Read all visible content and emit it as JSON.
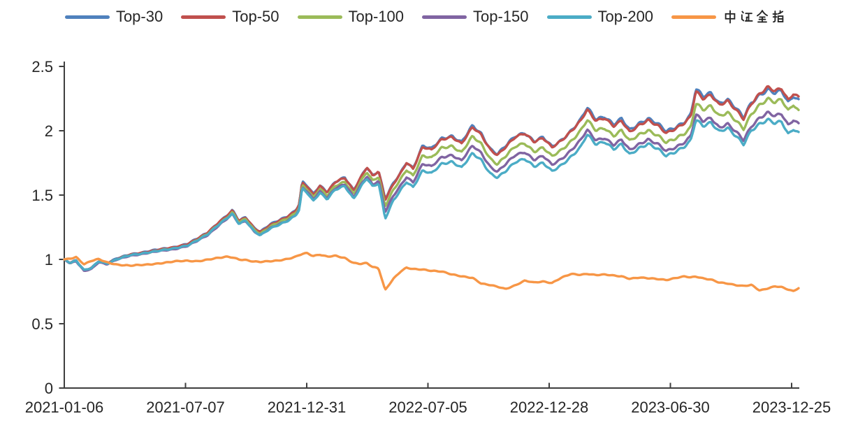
{
  "legend": {
    "items": [
      {
        "label": "Top-30",
        "color": "#4F81BD"
      },
      {
        "label": "Top-50",
        "color": "#C0504D"
      },
      {
        "label": "Top-100",
        "color": "#9BBB59"
      },
      {
        "label": "Top-150",
        "color": "#8064A2"
      },
      {
        "label": "Top-200",
        "color": "#4BACC6"
      },
      {
        "label": "中证全指",
        "color": "#F79646"
      }
    ]
  },
  "chart_data": {
    "type": "line",
    "title": "",
    "xlabel": "",
    "ylabel": "",
    "grid": false,
    "legend_position": "top",
    "ylim": [
      0,
      2.5
    ],
    "y_ticks": [
      0,
      0.5,
      1,
      1.5,
      2,
      2.5
    ],
    "y_tick_labels": [
      "0",
      "0.5",
      "1",
      "1.5",
      "2",
      "2.5"
    ],
    "x_tick_labels": [
      "2021-01-06",
      "2021-07-07",
      "2021-12-31",
      "2022-07-05",
      "2022-12-28",
      "2023-06-30",
      "2023-12-25"
    ],
    "t": [
      0.0,
      0.008,
      0.016,
      0.027,
      0.037,
      0.047,
      0.058,
      0.072,
      0.09,
      0.11,
      0.13,
      0.15,
      0.168,
      0.181,
      0.195,
      0.21,
      0.222,
      0.229,
      0.238,
      0.247,
      0.258,
      0.267,
      0.28,
      0.292,
      0.304,
      0.315,
      0.32,
      0.324,
      0.331,
      0.339,
      0.348,
      0.358,
      0.369,
      0.382,
      0.394,
      0.403,
      0.412,
      0.42,
      0.428,
      0.437,
      0.448,
      0.458,
      0.466,
      0.475,
      0.488,
      0.5,
      0.514,
      0.528,
      0.541,
      0.556,
      0.568,
      0.58,
      0.59,
      0.601,
      0.614,
      0.627,
      0.64,
      0.652,
      0.664,
      0.676,
      0.69,
      0.703,
      0.712,
      0.724,
      0.736,
      0.748,
      0.759,
      0.77,
      0.783,
      0.795,
      0.808,
      0.82,
      0.832,
      0.845,
      0.853,
      0.86,
      0.87,
      0.881,
      0.892,
      0.903,
      0.914,
      0.925,
      0.936,
      0.947,
      0.958,
      0.968,
      0.977,
      0.986,
      0.993,
      1.0
    ],
    "series": [
      {
        "name": "Top-30",
        "color": "#4F81BD",
        "values": [
          1.0,
          0.975,
          0.992,
          0.916,
          0.936,
          0.99,
          0.97,
          1.006,
          1.04,
          1.056,
          1.076,
          1.096,
          1.12,
          1.16,
          1.21,
          1.29,
          1.345,
          1.382,
          1.302,
          1.332,
          1.252,
          1.218,
          1.27,
          1.302,
          1.337,
          1.383,
          1.432,
          1.602,
          1.568,
          1.502,
          1.57,
          1.524,
          1.604,
          1.633,
          1.532,
          1.628,
          1.722,
          1.655,
          1.69,
          1.47,
          1.59,
          1.676,
          1.762,
          1.716,
          1.885,
          1.86,
          1.945,
          1.964,
          1.908,
          2.035,
          1.975,
          1.86,
          1.815,
          1.875,
          1.952,
          1.985,
          1.918,
          1.946,
          1.874,
          1.926,
          2.005,
          2.085,
          2.18,
          2.095,
          2.12,
          2.055,
          2.092,
          2.002,
          2.06,
          2.098,
          2.05,
          1.986,
          2.022,
          2.072,
          2.12,
          2.32,
          2.258,
          2.29,
          2.215,
          2.25,
          2.18,
          2.102,
          2.225,
          2.288,
          2.33,
          2.295,
          2.31,
          2.218,
          2.278,
          2.245
        ]
      },
      {
        "name": "Top-50",
        "color": "#C0504D",
        "values": [
          1.0,
          0.974,
          0.991,
          0.915,
          0.935,
          0.989,
          0.969,
          1.004,
          1.038,
          1.054,
          1.074,
          1.093,
          1.117,
          1.157,
          1.207,
          1.287,
          1.342,
          1.379,
          1.299,
          1.329,
          1.249,
          1.215,
          1.267,
          1.299,
          1.334,
          1.38,
          1.428,
          1.598,
          1.564,
          1.499,
          1.567,
          1.521,
          1.601,
          1.63,
          1.53,
          1.625,
          1.716,
          1.65,
          1.685,
          1.462,
          1.583,
          1.67,
          1.756,
          1.71,
          1.878,
          1.853,
          1.938,
          1.957,
          1.901,
          2.028,
          1.968,
          1.853,
          1.808,
          1.868,
          1.945,
          1.978,
          1.911,
          1.939,
          1.867,
          1.919,
          1.998,
          2.077,
          2.165,
          2.082,
          2.107,
          2.043,
          2.08,
          1.99,
          2.048,
          2.086,
          2.039,
          1.975,
          2.011,
          2.061,
          2.106,
          2.3,
          2.24,
          2.272,
          2.198,
          2.234,
          2.165,
          2.09,
          2.215,
          2.295,
          2.348,
          2.315,
          2.33,
          2.238,
          2.298,
          2.268
        ]
      },
      {
        "name": "Top-100",
        "color": "#9BBB59",
        "values": [
          1.0,
          0.972,
          0.988,
          0.912,
          0.931,
          0.985,
          0.965,
          1.0,
          1.033,
          1.048,
          1.067,
          1.086,
          1.109,
          1.148,
          1.197,
          1.275,
          1.329,
          1.364,
          1.286,
          1.315,
          1.236,
          1.202,
          1.253,
          1.284,
          1.318,
          1.362,
          1.409,
          1.576,
          1.542,
          1.477,
          1.543,
          1.497,
          1.575,
          1.602,
          1.502,
          1.595,
          1.682,
          1.615,
          1.648,
          1.415,
          1.536,
          1.622,
          1.7,
          1.656,
          1.81,
          1.786,
          1.868,
          1.886,
          1.832,
          1.952,
          1.895,
          1.785,
          1.74,
          1.798,
          1.872,
          1.904,
          1.84,
          1.867,
          1.797,
          1.847,
          1.923,
          2.0,
          2.082,
          2.003,
          2.028,
          1.966,
          2.002,
          1.916,
          1.972,
          2.008,
          1.962,
          1.9,
          1.935,
          1.983,
          2.026,
          2.212,
          2.155,
          2.186,
          2.115,
          2.15,
          2.083,
          2.01,
          2.13,
          2.208,
          2.258,
          2.225,
          2.24,
          2.15,
          2.208,
          2.158
        ]
      },
      {
        "name": "Top-150",
        "color": "#8064A2",
        "values": [
          1.0,
          0.97,
          0.986,
          0.91,
          0.928,
          0.982,
          0.962,
          0.997,
          1.029,
          1.044,
          1.062,
          1.08,
          1.103,
          1.141,
          1.189,
          1.266,
          1.319,
          1.352,
          1.275,
          1.304,
          1.225,
          1.191,
          1.241,
          1.271,
          1.304,
          1.347,
          1.393,
          1.558,
          1.524,
          1.459,
          1.524,
          1.477,
          1.553,
          1.578,
          1.478,
          1.568,
          1.65,
          1.583,
          1.614,
          1.368,
          1.492,
          1.576,
          1.648,
          1.606,
          1.745,
          1.722,
          1.8,
          1.817,
          1.766,
          1.88,
          1.826,
          1.72,
          1.677,
          1.732,
          1.804,
          1.835,
          1.773,
          1.799,
          1.732,
          1.78,
          1.853,
          1.927,
          2.007,
          1.932,
          1.955,
          1.896,
          1.93,
          1.848,
          1.901,
          1.936,
          1.892,
          1.832,
          1.866,
          1.912,
          1.954,
          2.118,
          2.064,
          2.094,
          2.026,
          2.059,
          1.995,
          1.925,
          2.04,
          2.112,
          2.152,
          2.118,
          2.13,
          2.042,
          2.095,
          2.062
        ]
      },
      {
        "name": "Top-200",
        "color": "#4BACC6",
        "values": [
          1.0,
          0.974,
          0.99,
          0.917,
          0.934,
          0.988,
          0.967,
          1.002,
          1.034,
          1.049,
          1.067,
          1.085,
          1.107,
          1.145,
          1.193,
          1.27,
          1.322,
          1.354,
          1.276,
          1.305,
          1.224,
          1.189,
          1.239,
          1.269,
          1.301,
          1.343,
          1.389,
          1.552,
          1.517,
          1.451,
          1.516,
          1.468,
          1.543,
          1.567,
          1.466,
          1.554,
          1.632,
          1.565,
          1.594,
          1.315,
          1.455,
          1.538,
          1.605,
          1.564,
          1.692,
          1.67,
          1.746,
          1.763,
          1.714,
          1.824,
          1.772,
          1.668,
          1.635,
          1.682,
          1.752,
          1.781,
          1.721,
          1.747,
          1.682,
          1.728,
          1.799,
          1.871,
          1.972,
          1.898,
          1.92,
          1.862,
          1.896,
          1.815,
          1.868,
          1.902,
          1.859,
          1.8,
          1.833,
          1.879,
          1.92,
          2.082,
          2.03,
          2.058,
          1.992,
          2.024,
          1.961,
          1.892,
          2.005,
          2.058,
          2.092,
          2.062,
          2.072,
          1.972,
          2.02,
          1.988
        ]
      },
      {
        "name": "中证全指",
        "color": "#F79646",
        "values": [
          1.0,
          1.004,
          1.018,
          0.962,
          0.988,
          1.0,
          0.975,
          0.96,
          0.952,
          0.958,
          0.972,
          0.985,
          0.99,
          0.988,
          0.998,
          1.01,
          1.02,
          1.016,
          1.0,
          0.994,
          0.98,
          0.978,
          0.986,
          0.992,
          1.002,
          1.018,
          1.032,
          1.042,
          1.05,
          1.028,
          1.04,
          1.022,
          1.028,
          1.012,
          0.975,
          0.968,
          0.972,
          0.94,
          0.93,
          0.762,
          0.85,
          0.906,
          0.934,
          0.922,
          0.92,
          0.912,
          0.905,
          0.88,
          0.868,
          0.858,
          0.812,
          0.8,
          0.788,
          0.772,
          0.8,
          0.835,
          0.82,
          0.83,
          0.818,
          0.855,
          0.885,
          0.88,
          0.888,
          0.878,
          0.88,
          0.872,
          0.868,
          0.85,
          0.858,
          0.852,
          0.848,
          0.842,
          0.856,
          0.868,
          0.86,
          0.868,
          0.855,
          0.845,
          0.82,
          0.812,
          0.8,
          0.795,
          0.802,
          0.756,
          0.772,
          0.79,
          0.785,
          0.765,
          0.752,
          0.775
        ]
      }
    ]
  }
}
